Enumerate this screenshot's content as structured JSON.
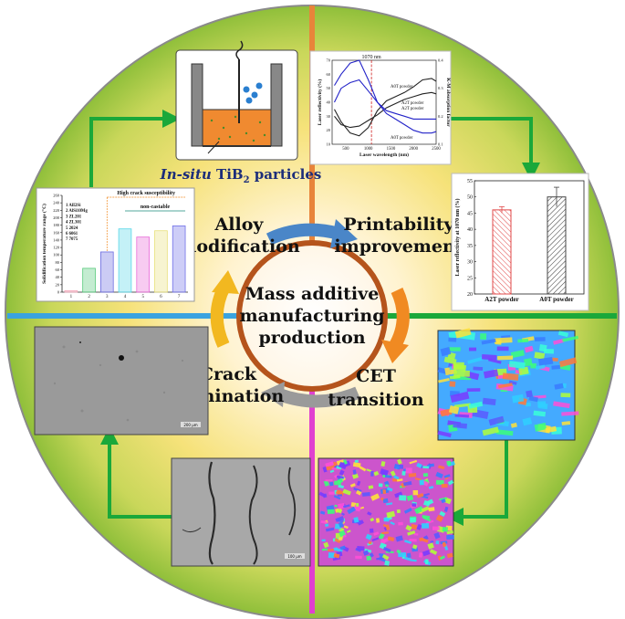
{
  "center": {
    "line1": "Mass additive",
    "line2": "manufacturing",
    "line3": "production"
  },
  "stages": {
    "alloy_modification": [
      "Alloy",
      "modification"
    ],
    "printability_improvement": [
      "Printability",
      "improvement"
    ],
    "cet_transition": [
      "CET",
      "transition"
    ],
    "crack_elimination": [
      "Crack",
      "elimination"
    ]
  },
  "tib2_caption": {
    "prefix": "In-situ",
    "main": " TiB",
    "subscript": "2",
    "suffix": " particles"
  },
  "colors": {
    "ring_outer": "#8fbf3a",
    "ring_inner": "#ffe9b0",
    "center_border": "#b5541c",
    "divider_orange": "#e8843a",
    "divider_blue": "#3aa3e0",
    "divider_green": "#1aa83a",
    "divider_pink": "#e040d0",
    "connector_green": "#1aa83a",
    "arrow_blue": "#4a86c8",
    "arrow_orange": "#f08a22",
    "arrow_grey": "#9a9a9a",
    "arrow_yellow": "#f2b820"
  },
  "chart_data": [
    {
      "type": "bar",
      "ylabel": "Solidification temperature range (°C)",
      "ylim": [
        0,
        260
      ],
      "yticks": [
        0,
        20,
        40,
        60,
        80,
        100,
        120,
        140,
        160,
        180,
        200,
        220,
        240,
        260
      ],
      "categories": [
        "1",
        "2",
        "3",
        "4",
        "5",
        "6",
        "7"
      ],
      "values": [
        4,
        64,
        108,
        170,
        148,
        165,
        178
      ],
      "bar_colors": [
        "#f4a7b9",
        "#56c97a",
        "#6a6ae0",
        "#57d7e8",
        "#e86ad8",
        "#e7e07a",
        "#7070e8"
      ],
      "legend": [
        "1 AlI2Si",
        "2 AlSi10Mg",
        "3 ZL201",
        "4 ZL301",
        "5 2024",
        "6 6061",
        "7 7075"
      ],
      "annotations": [
        "High crack susceptibility",
        "non-castable"
      ]
    },
    {
      "type": "line",
      "xlabel": "Laser wavelength (nm)",
      "ylabel": "Laser reflectivity (%)",
      "y2label": "K-M absorption factor",
      "xlim": [
        200,
        2500
      ],
      "xticks": [
        500,
        1000,
        1500,
        2000,
        2500
      ],
      "ylim": [
        10,
        70
      ],
      "yticks": [
        10,
        20,
        30,
        40,
        50,
        60,
        70
      ],
      "y2lim": [
        0.1,
        0.4
      ],
      "y2ticks": [
        0.1,
        0.2,
        0.3,
        0.4
      ],
      "marker_line": "1070 nm",
      "marker_x": 1070,
      "series": [
        {
          "name": "A0T powder",
          "axis": "left",
          "color": "#222222",
          "x": [
            250,
            400,
            600,
            800,
            1000,
            1200,
            1400,
            1600,
            1800,
            2000,
            2200,
            2400,
            2500
          ],
          "y": [
            35,
            26,
            18,
            16,
            22,
            34,
            41,
            44,
            47,
            51,
            56,
            57,
            55
          ]
        },
        {
          "name": "A2T powder",
          "axis": "left",
          "color": "#222222",
          "x": [
            250,
            400,
            600,
            800,
            1000,
            1200,
            1400,
            1600,
            1800,
            2000,
            2200,
            2400,
            2500
          ],
          "y": [
            30,
            24,
            22,
            23,
            27,
            31,
            36,
            39,
            42,
            44,
            46,
            47,
            46
          ]
        },
        {
          "name": "A0T powder",
          "axis": "right",
          "color": "#2222c8",
          "x": [
            250,
            400,
            600,
            800,
            1000,
            1200,
            1400,
            1600,
            1800,
            2000,
            2200,
            2400,
            2500
          ],
          "y": [
            0.31,
            0.35,
            0.39,
            0.4,
            0.33,
            0.25,
            0.21,
            0.19,
            0.17,
            0.15,
            0.14,
            0.14,
            0.145
          ]
        },
        {
          "name": "A2T powder",
          "axis": "right",
          "color": "#2222c8",
          "x": [
            250,
            400,
            600,
            800,
            1000,
            1200,
            1400,
            1600,
            1800,
            2000,
            2200,
            2400,
            2500
          ],
          "y": [
            0.25,
            0.3,
            0.32,
            0.33,
            0.29,
            0.25,
            0.22,
            0.21,
            0.2,
            0.19,
            0.19,
            0.19,
            0.19
          ]
        }
      ]
    },
    {
      "type": "bar",
      "ylabel": "Laser reflectivity at 1070 nm (%)",
      "ylim": [
        20,
        55
      ],
      "yticks": [
        20,
        25,
        30,
        35,
        40,
        45,
        50,
        55
      ],
      "categories": [
        "A2T powder",
        "A0T powder"
      ],
      "values": [
        46,
        50
      ],
      "errors": [
        1,
        3
      ],
      "bar_colors": [
        "#e04848",
        "#444444"
      ]
    }
  ],
  "micrographs": {
    "left_scale": "200 µm",
    "crack_scale": "100 µm"
  }
}
